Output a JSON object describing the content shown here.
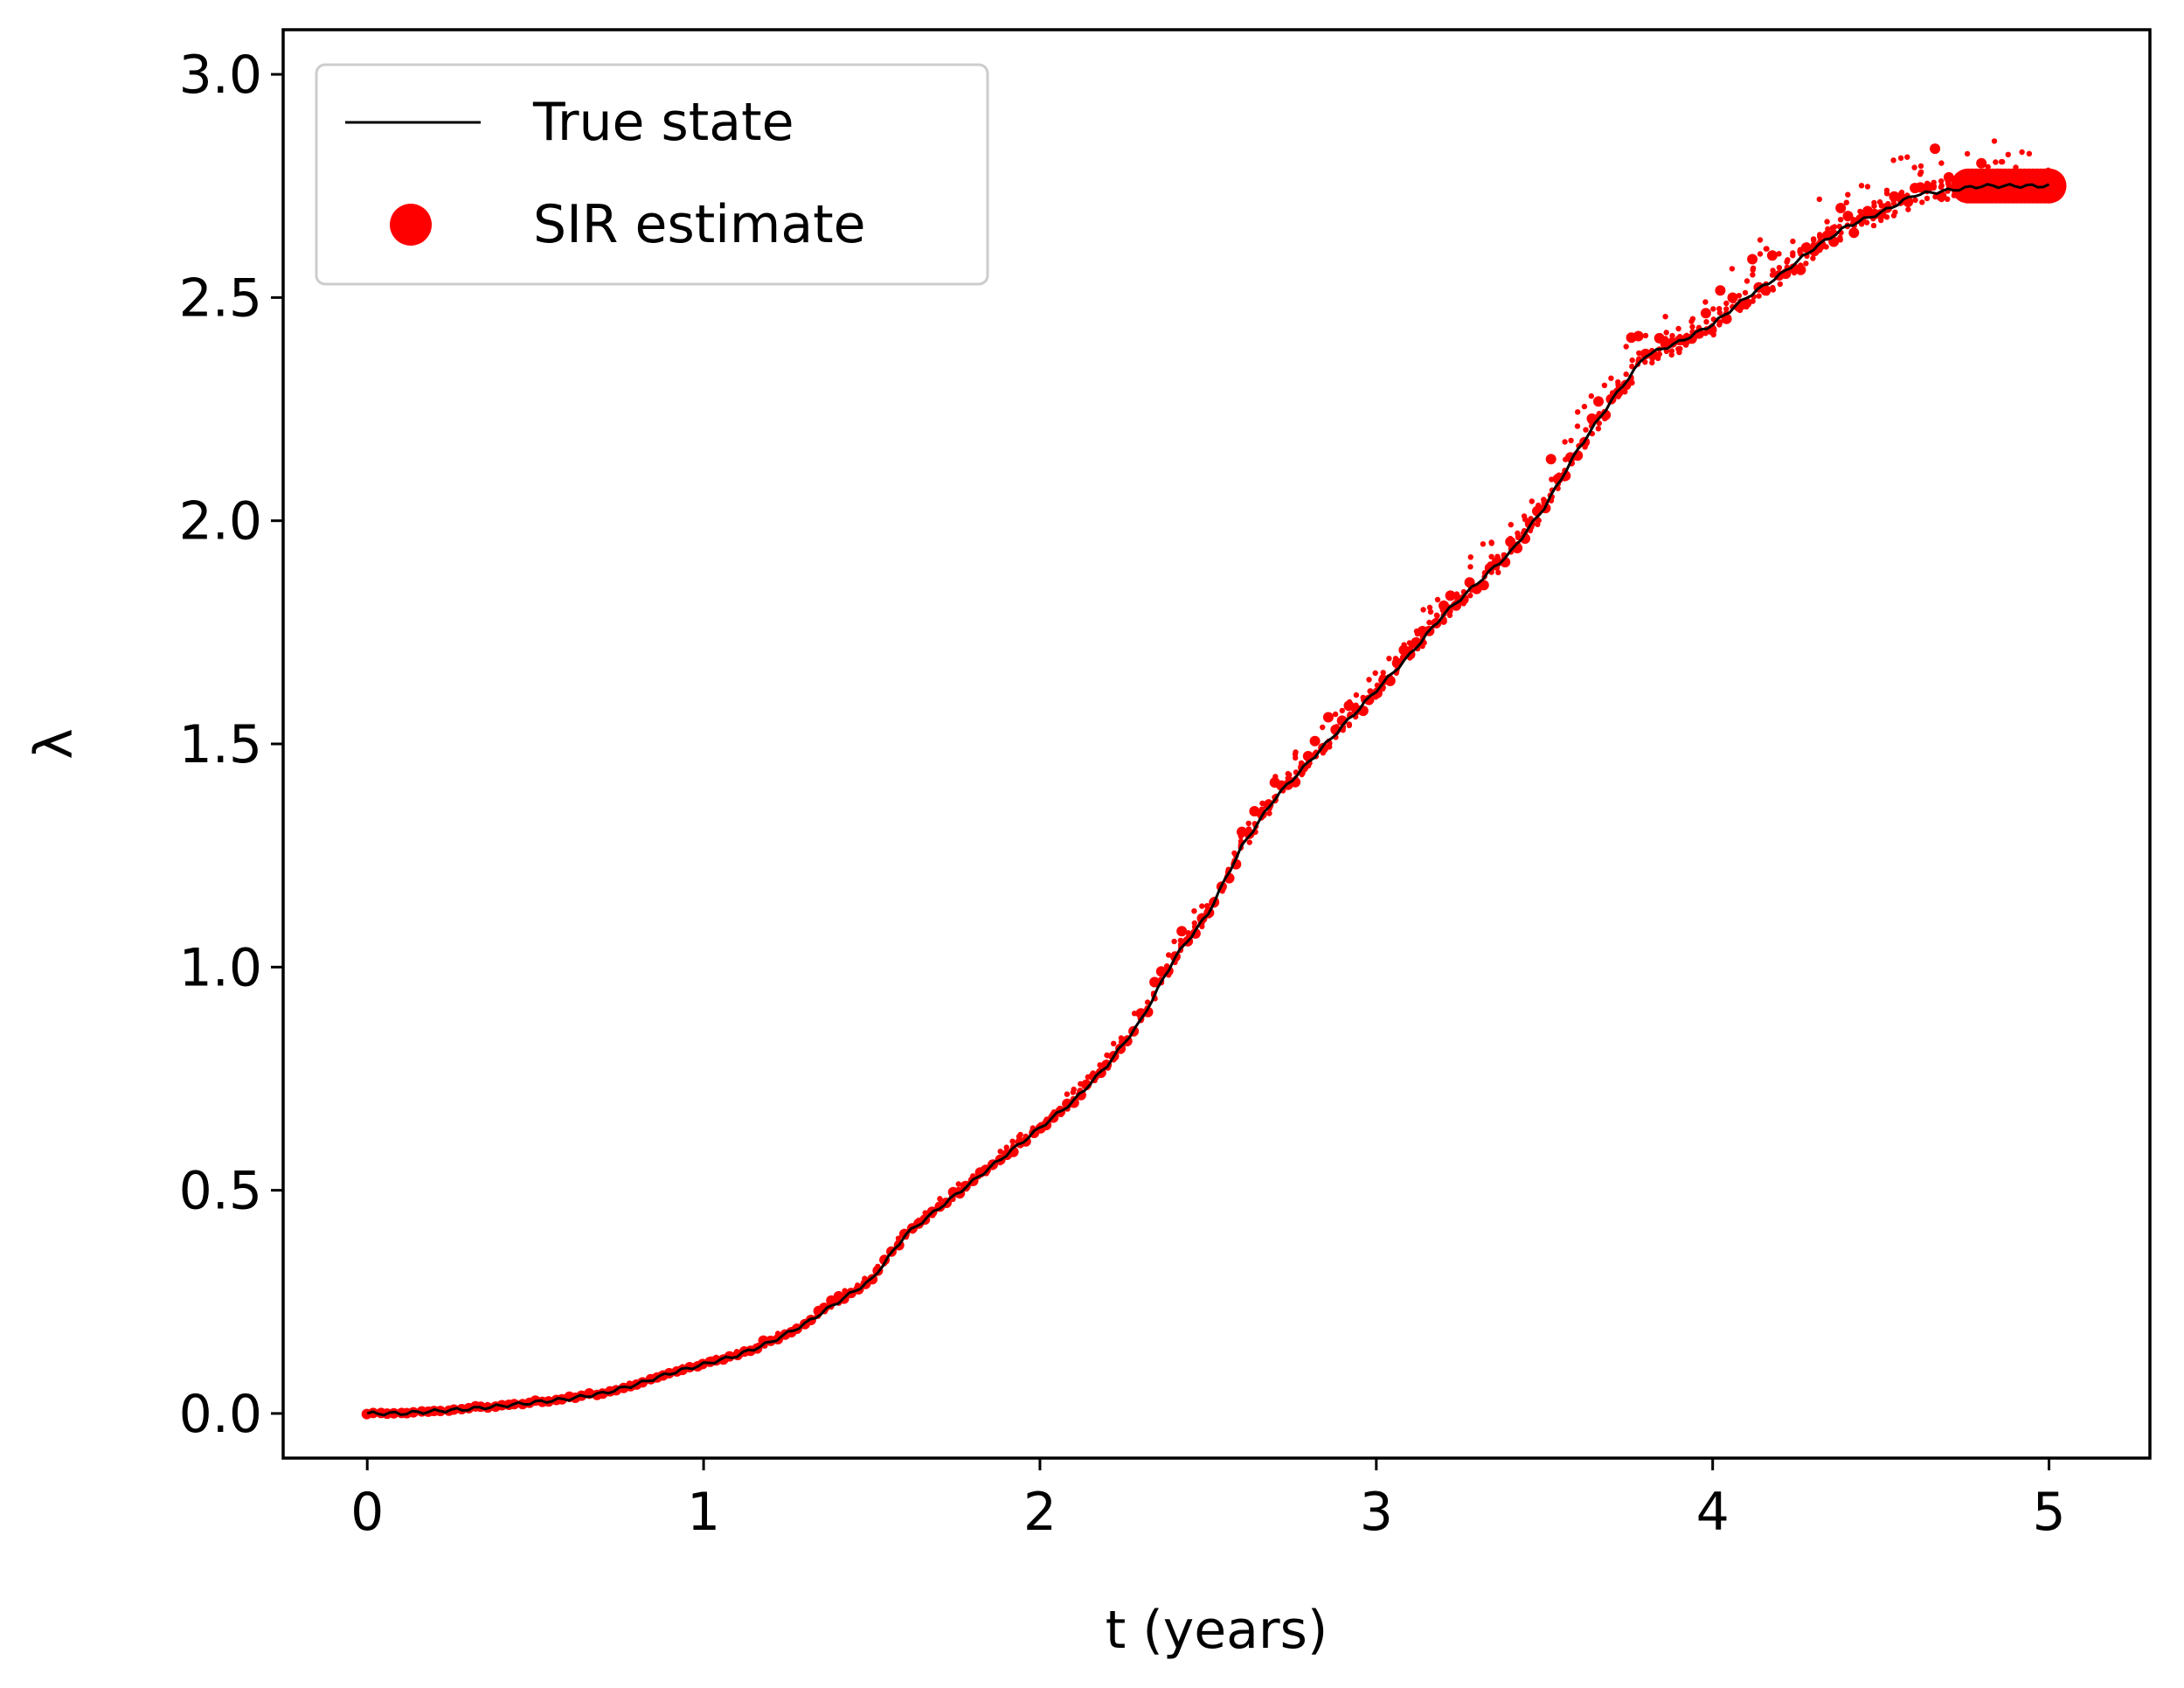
{
  "chart_data": {
    "type": "scatter",
    "xlabel": "t (years)",
    "ylabel": "λ",
    "xlim": [
      -0.25,
      5.3
    ],
    "ylim": [
      -0.1,
      3.1
    ],
    "x_ticks": [
      0,
      1,
      2,
      3,
      4,
      5
    ],
    "x_tick_labels": [
      "0",
      "1",
      "2",
      "3",
      "4",
      "5"
    ],
    "y_ticks": [
      0.0,
      0.5,
      1.0,
      1.5,
      2.0,
      2.5,
      3.0
    ],
    "y_tick_labels": [
      "0.0",
      "0.5",
      "1.0",
      "1.5",
      "2.0",
      "2.5",
      "3.0"
    ],
    "grid": false,
    "legend": {
      "position": "top-left",
      "entries": [
        {
          "label": "True state",
          "marker": "line",
          "color": "#000000"
        },
        {
          "label": "SIR estimate",
          "marker": "dot",
          "color": "#ff0000"
        }
      ]
    },
    "series": [
      {
        "name": "True state",
        "kind": "line",
        "color": "#000000",
        "x": [
          0.0,
          0.1,
          0.2,
          0.3,
          0.4,
          0.5,
          0.6,
          0.7,
          0.8,
          0.9,
          1.0,
          1.1,
          1.2,
          1.3,
          1.4,
          1.5,
          1.6,
          1.7,
          1.8,
          1.9,
          2.0,
          2.1,
          2.2,
          2.3,
          2.4,
          2.5,
          2.6,
          2.7,
          2.8,
          2.9,
          3.0,
          3.1,
          3.2,
          3.3,
          3.4,
          3.5,
          3.6,
          3.7,
          3.8,
          3.9,
          4.0,
          4.1,
          4.2,
          4.3,
          4.4,
          4.5,
          4.6,
          4.7,
          4.8,
          4.9,
          5.0
        ],
        "y": [
          0.0,
          0.0,
          0.005,
          0.01,
          0.017,
          0.025,
          0.033,
          0.045,
          0.065,
          0.09,
          0.11,
          0.13,
          0.16,
          0.2,
          0.25,
          0.3,
          0.4,
          0.46,
          0.52,
          0.58,
          0.64,
          0.7,
          0.78,
          0.88,
          1.02,
          1.12,
          1.27,
          1.38,
          1.46,
          1.54,
          1.62,
          1.7,
          1.79,
          1.86,
          1.93,
          2.03,
          2.16,
          2.27,
          2.37,
          2.4,
          2.44,
          2.5,
          2.55,
          2.61,
          2.66,
          2.69,
          2.73,
          2.74,
          2.75,
          2.75,
          2.75
        ]
      },
      {
        "name": "SIR estimate",
        "kind": "scatter",
        "color": "#ff0000"
      }
    ]
  }
}
